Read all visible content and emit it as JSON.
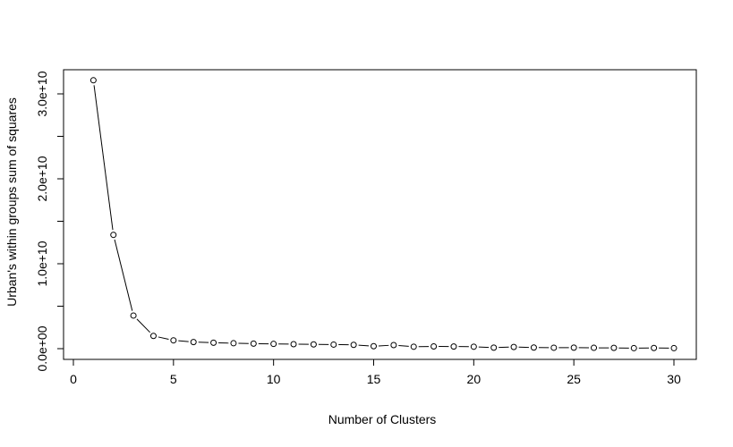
{
  "chart_data": {
    "type": "line",
    "title": "",
    "xlabel": "Number of Clusters",
    "ylabel": "Urban's within groups sum of squares",
    "xlim": [
      0,
      30
    ],
    "ylim": [
      0,
      31500000000
    ],
    "x_ticks": [
      0,
      5,
      10,
      15,
      20,
      25,
      30
    ],
    "x_tick_labels": [
      "0",
      "5",
      "10",
      "15",
      "20",
      "25",
      "30"
    ],
    "y_ticks": [
      0,
      5000000000,
      10000000000,
      15000000000,
      20000000000,
      25000000000,
      30000000000
    ],
    "y_tick_labels": [
      "0.0e+00",
      "",
      "1.0e+10",
      "",
      "2.0e+10",
      "",
      "3.0e+10"
    ],
    "grid": false,
    "legend": "none",
    "line_style": "b",
    "marker": "open-circle",
    "series": [
      {
        "x": [
          1,
          2,
          3,
          4,
          5,
          6,
          7,
          8,
          9,
          10,
          11,
          12,
          13,
          14,
          15,
          16,
          17,
          18,
          19,
          20,
          21,
          22,
          23,
          24,
          25,
          26,
          27,
          28,
          29,
          30
        ],
        "values": [
          31600000000,
          13400000000,
          3900000000,
          1500000000,
          980000000,
          780000000,
          700000000,
          640000000,
          590000000,
          560000000,
          530000000,
          500000000,
          480000000,
          450000000,
          290000000,
          420000000,
          230000000,
          260000000,
          250000000,
          230000000,
          120000000,
          200000000,
          130000000,
          110000000,
          120000000,
          100000000,
          90000000,
          60000000,
          80000000,
          60000000
        ]
      }
    ]
  }
}
